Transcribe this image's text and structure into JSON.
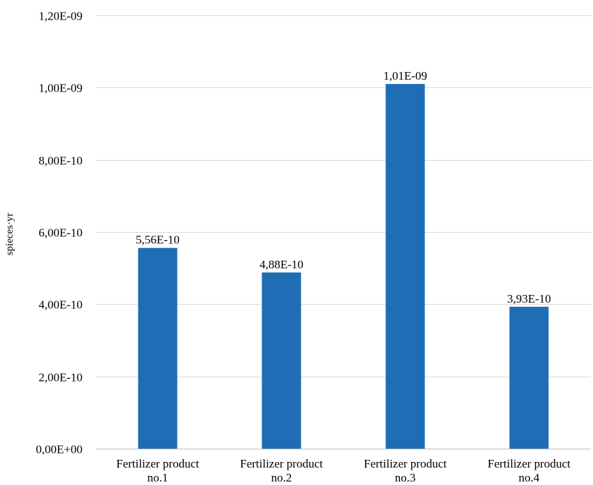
{
  "chart_data": {
    "type": "bar",
    "title": "",
    "xlabel": "",
    "ylabel": "spieces·yr",
    "categories": [
      [
        "Fertilizer product",
        "no.1"
      ],
      [
        "Fertilizer product",
        "no.2"
      ],
      [
        "Fertilizer product",
        "no.3"
      ],
      [
        "Fertilizer product",
        "no.4"
      ]
    ],
    "values": [
      5.56e-10,
      4.88e-10,
      1.01e-09,
      3.93e-10
    ],
    "data_labels": [
      "5,56E-10",
      "4,88E-10",
      "1,01E-09",
      "3,93E-10"
    ],
    "ylim": [
      0,
      1.2e-09
    ],
    "yticks": [
      0,
      2e-10,
      4e-10,
      6e-10,
      8e-10,
      1e-09,
      1.2e-09
    ],
    "ytick_labels": [
      "0,00E+00",
      "2,00E-10",
      "4,00E-10",
      "6,00E-10",
      "8,00E-10",
      "1,00E-09",
      "1,20E-09"
    ],
    "grid": true,
    "legend": "none",
    "bar_color": "#1f6db5"
  }
}
